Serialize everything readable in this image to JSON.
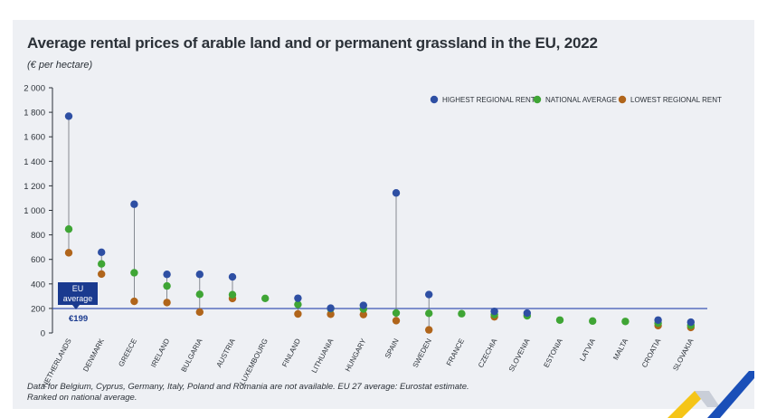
{
  "title": "Average rental prices of arable land and or permanent grassland in the EU, 2022",
  "subtitle": "(€ per hectare)",
  "footnote": [
    "Data for Belgium, Cyprus, Germany, Italy, Poland and Romania are not available. EU 27 average: Eurostat estimate.",
    "Ranked on national average."
  ],
  "colors": {
    "highest": "#2e4fa3",
    "national": "#3fa535",
    "lowest": "#b0651b",
    "eu_line": "#3b55b3",
    "eu_box": "#1a3a8f",
    "logo_yellow": "#f5c518",
    "logo_blue": "#1a4fb8"
  },
  "eu_average": {
    "box_line1": "EU",
    "box_line2": "average",
    "label": "€199",
    "value": 199
  },
  "chart_data": {
    "type": "scatter",
    "title": "Average rental prices of arable land and or permanent grassland in the EU, 2022",
    "ylabel": "€ per hectare",
    "ylim": [
      0,
      2000
    ],
    "yticks": [
      0,
      200,
      400,
      600,
      800,
      1000,
      1200,
      1400,
      1600,
      1800,
      2000
    ],
    "ytick_labels": [
      "0",
      "200",
      "400",
      "600",
      "800",
      "1 000",
      "1 200",
      "1 400",
      "1 600",
      "1 800",
      "2 000"
    ],
    "grid": false,
    "legend": "top-right",
    "categories": [
      "Netherlands",
      "Denmark",
      "Greece",
      "Ireland",
      "Bulgaria",
      "Austria",
      "Luxembourg",
      "Finland",
      "Lithuania",
      "Hungary",
      "Spain",
      "Sweden",
      "France",
      "Czechia",
      "Slovenia",
      "Estonia",
      "Latvia",
      "Malta",
      "Croatia",
      "Slovakia"
    ],
    "series": [
      {
        "name": "Highest regional rent",
        "key": "highest",
        "values": [
          1768,
          658,
          1050,
          478,
          478,
          457,
          null,
          283,
          202,
          225,
          1142,
          313,
          null,
          176,
          162,
          null,
          null,
          null,
          105,
          88
        ]
      },
      {
        "name": "National average",
        "key": "national",
        "values": [
          847,
          563,
          491,
          383,
          315,
          312,
          282,
          232,
          198,
          195,
          163,
          160,
          157,
          150,
          140,
          105,
          97,
          94,
          80,
          62
        ]
      },
      {
        "name": "Lowest regional rent",
        "key": "lowest",
        "values": [
          654,
          480,
          258,
          248,
          170,
          281,
          null,
          155,
          153,
          150,
          100,
          25,
          null,
          132,
          null,
          null,
          null,
          null,
          60,
          45
        ]
      }
    ]
  }
}
